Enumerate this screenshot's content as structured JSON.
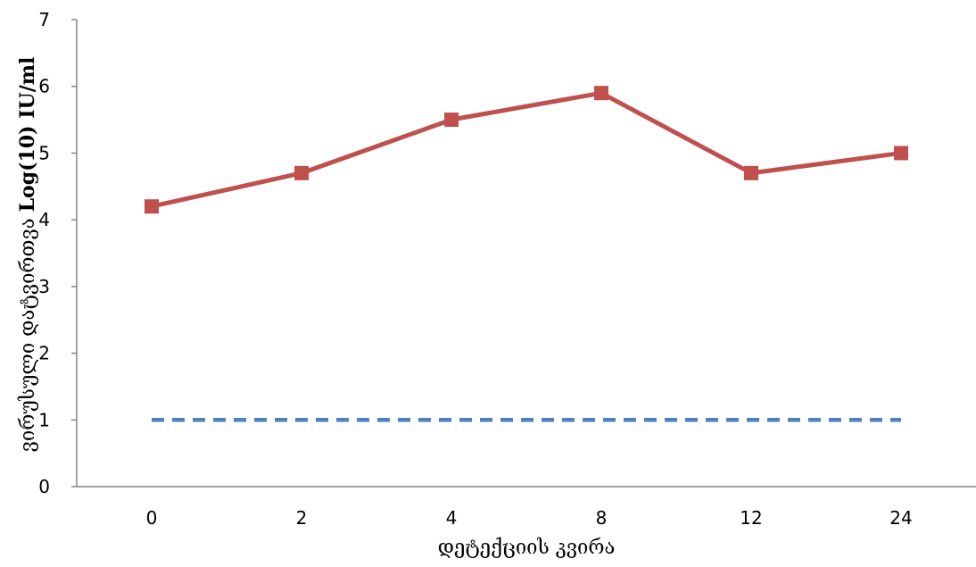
{
  "chart_data": {
    "type": "line",
    "categories": [
      "0",
      "2",
      "4",
      "8",
      "12",
      "24"
    ],
    "series": [
      {
        "values": [
          4.2,
          4.7,
          5.5,
          5.9,
          4.7,
          5.0
        ],
        "color": "#C0504D",
        "style": "solid",
        "marker": "square"
      },
      {
        "values": [
          1,
          1,
          1,
          1,
          1,
          1
        ],
        "color": "#4F81BD",
        "style": "dashed",
        "marker": "none"
      }
    ],
    "xlabel": "დეტექციის კვირა",
    "ylabel_prefix": "ვირუსული დატვირთვა ",
    "ylabel_unit": "Log(10) IU/ml",
    "ylim": [
      0,
      7
    ],
    "yticks": [
      0,
      1,
      2,
      3,
      4,
      5,
      6,
      7
    ],
    "grid": false,
    "legend": "none"
  }
}
